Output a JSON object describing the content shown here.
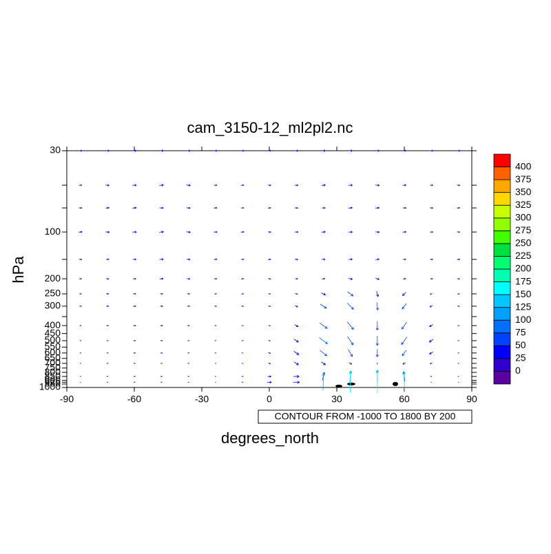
{
  "chart_data": {
    "type": "vector",
    "title": "cam_3150-12_ml2pl2.nc",
    "xlabel": "degrees_north",
    "ylabel": "hPa",
    "annotation": "CONTOUR FROM -1000 TO 1800 BY 200",
    "xlim": [
      -90,
      90
    ],
    "xticks": [
      -90,
      -60,
      -30,
      0,
      30,
      60,
      90
    ],
    "ylim": [
      1000,
      30
    ],
    "log_y": true,
    "yticks": [
      30,
      100,
      200,
      250,
      300,
      400,
      450,
      500,
      550,
      600,
      650,
      700,
      750,
      800,
      850,
      900,
      925,
      950,
      1000
    ],
    "yminorticks": [
      50,
      70,
      150,
      350
    ],
    "lat": [
      -84,
      -72,
      -60,
      -48,
      -36,
      -24,
      -12,
      0,
      12,
      24,
      36,
      48,
      60,
      72,
      84
    ],
    "level": [
      30,
      50,
      70,
      100,
      150,
      200,
      250,
      300,
      400,
      500,
      600,
      700,
      850,
      925
    ],
    "u": [
      [
        25,
        28,
        30,
        30,
        28,
        25,
        25,
        25,
        28,
        30,
        30,
        28,
        25,
        25,
        25
      ],
      [
        20,
        25,
        28,
        30,
        28,
        22,
        20,
        22,
        25,
        28,
        30,
        28,
        25,
        22,
        20
      ],
      [
        22,
        25,
        28,
        28,
        25,
        22,
        20,
        20,
        22,
        25,
        28,
        28,
        25,
        22,
        20
      ],
      [
        25,
        28,
        30,
        30,
        28,
        25,
        22,
        22,
        25,
        28,
        30,
        28,
        25,
        22,
        20
      ],
      [
        20,
        22,
        25,
        28,
        25,
        22,
        20,
        20,
        22,
        25,
        28,
        25,
        22,
        20,
        20
      ],
      [
        18,
        20,
        22,
        25,
        22,
        20,
        18,
        18,
        20,
        22,
        30,
        25,
        20,
        18,
        18
      ],
      [
        15,
        18,
        20,
        20,
        18,
        15,
        15,
        15,
        18,
        30,
        40,
        10,
        -25,
        -15,
        15
      ],
      [
        15,
        18,
        20,
        20,
        18,
        15,
        15,
        15,
        20,
        45,
        45,
        5,
        -30,
        -20,
        15
      ],
      [
        12,
        15,
        18,
        18,
        15,
        12,
        12,
        12,
        25,
        55,
        45,
        0,
        -35,
        -25,
        12
      ],
      [
        10,
        12,
        15,
        15,
        12,
        10,
        10,
        12,
        30,
        60,
        40,
        0,
        -40,
        -28,
        10
      ],
      [
        10,
        12,
        15,
        15,
        12,
        10,
        10,
        15,
        35,
        50,
        30,
        0,
        -30,
        -25,
        10
      ],
      [
        8,
        10,
        12,
        12,
        10,
        8,
        8,
        15,
        30,
        30,
        20,
        0,
        -20,
        -15,
        8
      ],
      [
        8,
        10,
        12,
        12,
        10,
        8,
        10,
        25,
        40,
        15,
        5,
        0,
        -10,
        -10,
        8
      ],
      [
        5,
        8,
        10,
        10,
        8,
        5,
        10,
        30,
        45,
        5,
        0,
        0,
        -5,
        -5,
        5
      ]
    ],
    "v": [
      [
        0,
        0,
        0,
        0,
        0,
        0,
        0,
        0,
        0,
        0,
        0,
        0,
        0,
        0,
        0
      ],
      [
        2,
        -2,
        0,
        3,
        -3,
        0,
        2,
        -2,
        0,
        3,
        0,
        -2,
        2,
        0,
        -2
      ],
      [
        -2,
        2,
        3,
        0,
        -3,
        2,
        0,
        2,
        -2,
        0,
        3,
        2,
        0,
        -2,
        2
      ],
      [
        2,
        -2,
        0,
        3,
        -3,
        0,
        2,
        -2,
        0,
        3,
        0,
        -2,
        2,
        0,
        -2
      ],
      [
        -3,
        2,
        0,
        2,
        -2,
        3,
        0,
        2,
        -2,
        0,
        2,
        3,
        0,
        -2,
        2
      ],
      [
        2,
        -2,
        0,
        3,
        -3,
        0,
        2,
        -2,
        0,
        3,
        -5,
        -8,
        2,
        0,
        -2
      ],
      [
        0,
        0,
        0,
        0,
        0,
        0,
        0,
        0,
        -5,
        -15,
        -30,
        -40,
        -25,
        -5,
        0
      ],
      [
        0,
        0,
        0,
        0,
        0,
        0,
        0,
        -3,
        -10,
        -30,
        -45,
        -55,
        -40,
        -10,
        0
      ],
      [
        0,
        0,
        0,
        0,
        0,
        0,
        0,
        -5,
        -15,
        -40,
        -55,
        -65,
        -50,
        -15,
        0
      ],
      [
        0,
        0,
        0,
        0,
        0,
        0,
        0,
        -5,
        -20,
        -45,
        -60,
        -70,
        -55,
        -20,
        0
      ],
      [
        0,
        0,
        0,
        0,
        0,
        0,
        0,
        -5,
        -25,
        -40,
        -50,
        -55,
        -40,
        -15,
        0
      ],
      [
        0,
        0,
        0,
        0,
        0,
        0,
        0,
        -5,
        -20,
        -20,
        -10,
        -10,
        -10,
        -5,
        0
      ],
      [
        0,
        0,
        0,
        0,
        0,
        0,
        0,
        0,
        0,
        60,
        80,
        90,
        70,
        0,
        0
      ],
      [
        0,
        0,
        0,
        0,
        0,
        0,
        0,
        0,
        0,
        120,
        150,
        160,
        140,
        0,
        0
      ]
    ],
    "colorbar_levels": [
      0,
      25,
      50,
      75,
      100,
      125,
      150,
      175,
      200,
      225,
      250,
      275,
      300,
      325,
      350,
      375,
      400
    ],
    "colors": [
      "#5a00a0",
      "#3000d0",
      "#0000ff",
      "#0040ff",
      "#0070ff",
      "#00a0ff",
      "#00c8ff",
      "#00ffff",
      "#00ffb0",
      "#00ff70",
      "#00e040",
      "#40ff00",
      "#90ff00",
      "#c8ff00",
      "#ffd800",
      "#ffa800",
      "#ff6000",
      "#ff0000"
    ]
  }
}
